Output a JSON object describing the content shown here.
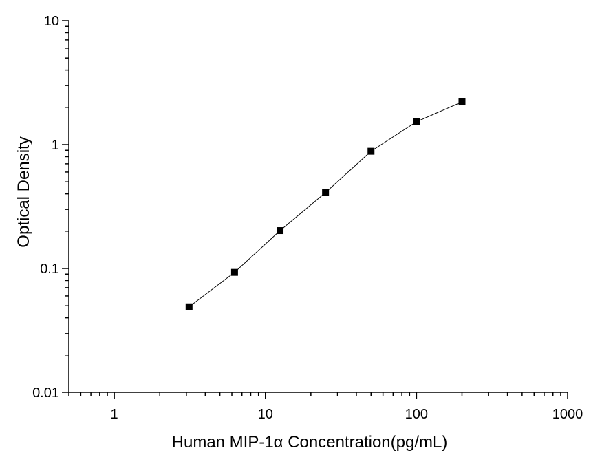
{
  "chart_data": {
    "type": "scatter",
    "xlabel": "Human MIP-1α Concentration(pg/mL)",
    "ylabel": "Optical  Density",
    "xscale": "log",
    "yscale": "log",
    "xlim": [
      0.5,
      1000
    ],
    "ylim": [
      0.01,
      10
    ],
    "xticks": [
      1,
      10,
      100,
      1000
    ],
    "xtick_labels": [
      "1",
      "10",
      "100",
      "1000"
    ],
    "yticks": [
      0.01,
      0.1,
      1,
      10
    ],
    "ytick_labels": [
      "0.01",
      "0.1",
      "1",
      "10"
    ],
    "grid": false,
    "legend": "none",
    "marker": "square",
    "connect_points": true,
    "colors": {
      "marker": "#000000",
      "line": "#000000",
      "axis": "#000000"
    },
    "series": [
      {
        "x": [
          3.125,
          6.25,
          12.5,
          25,
          50,
          100,
          200
        ],
        "y": [
          0.049,
          0.093,
          0.202,
          0.41,
          0.884,
          1.53,
          2.21
        ]
      }
    ]
  }
}
